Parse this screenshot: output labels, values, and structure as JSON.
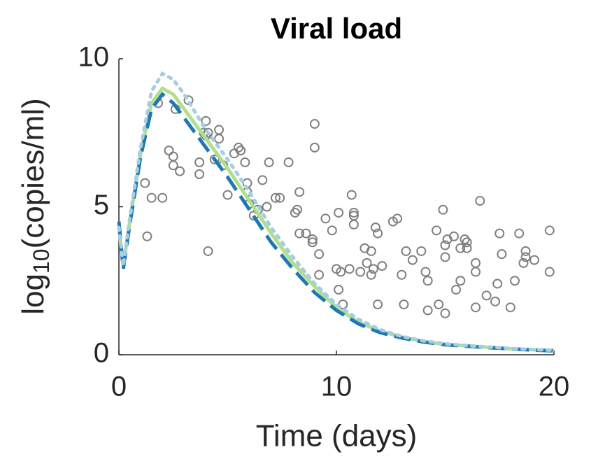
{
  "chart_data": {
    "type": "line",
    "title": "Viral load",
    "xlabel": "Time (days)",
    "ylabel": [
      "log",
      "10",
      "(copies/ml)"
    ],
    "xlim": [
      0,
      20
    ],
    "xticks": [
      0,
      10,
      20
    ],
    "ylim": [
      0,
      10
    ],
    "yticks": [
      0,
      5,
      10
    ],
    "series": [
      {
        "type": "scatter",
        "color": "#808080",
        "x": [
          1.2,
          1.3,
          1.5,
          1.8,
          2.0,
          2.3,
          2.5,
          2.5,
          2.6,
          2.8,
          3.2,
          3.7,
          3.7,
          3.9,
          4.0,
          4.0,
          4.1,
          4.1,
          4.4,
          4.6,
          4.6,
          4.8,
          5.0,
          5.3,
          5.5,
          5.6,
          5.8,
          5.9,
          5.9,
          6.0,
          6.2,
          6.4,
          6.6,
          6.8,
          6.9,
          7.2,
          7.4,
          7.8,
          8.1,
          8.2,
          8.3,
          8.3,
          8.6,
          8.9,
          8.9,
          9.0,
          9.0,
          9.2,
          9.2,
          9.5,
          9.8,
          10.1,
          10.0,
          10.1,
          10.2,
          10.3,
          10.6,
          10.7,
          10.8,
          10.8,
          10.8,
          11.1,
          11.3,
          11.4,
          11.6,
          11.6,
          11.7,
          11.8,
          11.9,
          11.9,
          12.1,
          12.6,
          12.8,
          13.1,
          13.0,
          13.2,
          13.5,
          13.9,
          14.1,
          14.2,
          14.2,
          14.6,
          14.7,
          14.9,
          15.0,
          15.0,
          15.0,
          15.1,
          15.4,
          15.5,
          15.7,
          15.7,
          15.9,
          16.0,
          16.0,
          16.4,
          16.4,
          16.4,
          16.6,
          16.9,
          17.3,
          17.4,
          17.5,
          17.6,
          18.0,
          18.2,
          18.4,
          18.6,
          18.7,
          18.7,
          19.1,
          19.8,
          19.8
        ],
        "values": [
          5.8,
          4.0,
          5.3,
          8.5,
          5.3,
          6.9,
          6.7,
          6.4,
          8.3,
          6.2,
          8.6,
          6.5,
          6.1,
          7.5,
          7.9,
          7.4,
          3.5,
          7.5,
          6.6,
          7.6,
          7.3,
          6.4,
          5.4,
          6.8,
          7.0,
          6.9,
          6.5,
          5.8,
          5.5,
          5.1,
          4.7,
          4.9,
          5.9,
          5.0,
          6.5,
          5.3,
          5.3,
          6.5,
          4.8,
          4.9,
          5.5,
          4.1,
          4.1,
          3.8,
          3.9,
          7.0,
          7.8,
          3.4,
          2.7,
          4.6,
          4.2,
          4.8,
          2.9,
          2.2,
          2.8,
          1.7,
          2.9,
          5.4,
          4.8,
          4.7,
          4.4,
          2.8,
          3.6,
          3.1,
          3.5,
          2.7,
          2.9,
          4.3,
          4.1,
          1.7,
          3.0,
          4.5,
          4.6,
          1.7,
          2.7,
          3.5,
          3.2,
          3.5,
          2.8,
          1.5,
          2.5,
          4.2,
          1.7,
          4.9,
          3.3,
          3.7,
          1.4,
          3.9,
          4.0,
          2.2,
          2.5,
          3.6,
          3.9,
          3.8,
          3.6,
          3.1,
          1.6,
          2.8,
          5.2,
          2.0,
          1.8,
          2.4,
          4.1,
          3.4,
          1.6,
          2.5,
          4.1,
          3.1,
          3.5,
          3.3,
          3.2,
          2.8,
          4.2
        ]
      },
      {
        "type": "line",
        "style": "solid",
        "color": "#b2df8a",
        "x": [
          0,
          0.2,
          0.5,
          1,
          1.5,
          2,
          2.5,
          3,
          4,
          5,
          6,
          7,
          8,
          9,
          10,
          11,
          12,
          13,
          14,
          15,
          16,
          17,
          18,
          19,
          20
        ],
        "values": [
          4.3,
          3.0,
          4.5,
          6.8,
          8.5,
          9.0,
          8.8,
          8.3,
          7.3,
          6.3,
          5.2,
          4.1,
          3.1,
          2.3,
          1.6,
          1.1,
          0.8,
          0.6,
          0.45,
          0.35,
          0.3,
          0.25,
          0.2,
          0.17,
          0.14
        ]
      },
      {
        "type": "line",
        "style": "dashed",
        "color": "#1f78b4",
        "x": [
          0,
          0.2,
          0.5,
          1,
          1.5,
          2,
          2.5,
          3,
          4,
          5,
          6,
          7,
          8,
          9,
          10,
          11,
          12,
          13,
          14,
          15,
          16,
          17,
          18,
          19,
          20
        ],
        "values": [
          4.5,
          2.9,
          4.4,
          6.7,
          8.3,
          8.8,
          8.5,
          8.0,
          7.0,
          6.0,
          4.9,
          3.8,
          2.9,
          2.1,
          1.5,
          1.05,
          0.75,
          0.57,
          0.43,
          0.34,
          0.29,
          0.24,
          0.2,
          0.16,
          0.13
        ]
      },
      {
        "type": "line",
        "style": "dotted",
        "color": "#a6cee3",
        "x": [
          0,
          0.2,
          0.5,
          1,
          1.5,
          2,
          2.5,
          3,
          4,
          5,
          6,
          7,
          8,
          9,
          10,
          11,
          12,
          13,
          14,
          15,
          16,
          17,
          18,
          19,
          20
        ],
        "values": [
          4.3,
          3.0,
          4.6,
          7.0,
          8.9,
          9.5,
          9.3,
          8.8,
          7.6,
          6.6,
          5.5,
          4.3,
          3.3,
          2.4,
          1.7,
          1.2,
          0.85,
          0.62,
          0.47,
          0.37,
          0.31,
          0.26,
          0.21,
          0.18,
          0.15
        ]
      }
    ]
  }
}
